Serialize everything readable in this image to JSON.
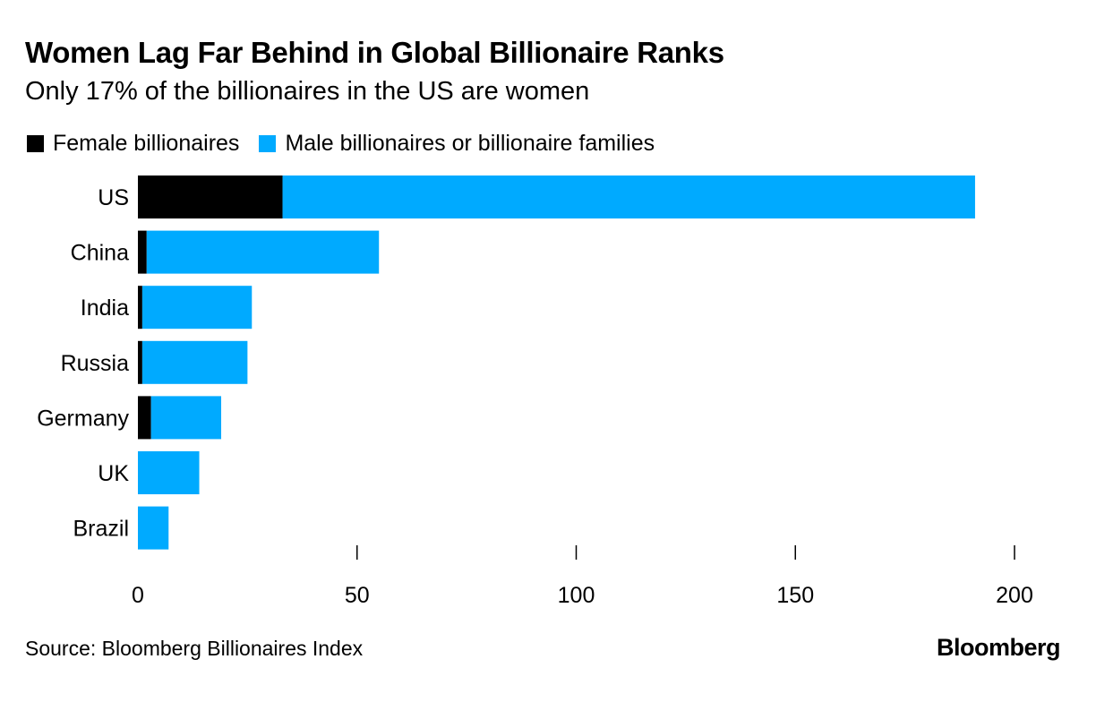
{
  "title": "Women Lag Far Behind in Global Billionaire Ranks",
  "subtitle": "Only 17% of the billionaires in the US are women",
  "source": "Source: Bloomberg Billionaires Index",
  "brand": "Bloomberg",
  "colors": {
    "female": "#000000",
    "male": "#00aaff",
    "axis": "#000000"
  },
  "chart_data": {
    "type": "bar",
    "orientation": "horizontal",
    "stacked": true,
    "title": "Women Lag Far Behind in Global Billionaire Ranks",
    "subtitle": "Only 17% of the billionaires in the US are women",
    "categories": [
      "US",
      "China",
      "India",
      "Russia",
      "Germany",
      "UK",
      "Brazil"
    ],
    "series": [
      {
        "name": "Female billionaires",
        "color": "#000000",
        "values": [
          33,
          2,
          1,
          1,
          3,
          0,
          0
        ]
      },
      {
        "name": "Male billionaires or billionaire families",
        "color": "#00aaff",
        "values": [
          158,
          53,
          25,
          24,
          16,
          14,
          7
        ]
      }
    ],
    "xlim": [
      0,
      200
    ],
    "xticks": [
      0,
      50,
      100,
      150,
      200
    ],
    "xlabel": "",
    "ylabel": "",
    "grid": false,
    "legend_position": "top-left"
  }
}
